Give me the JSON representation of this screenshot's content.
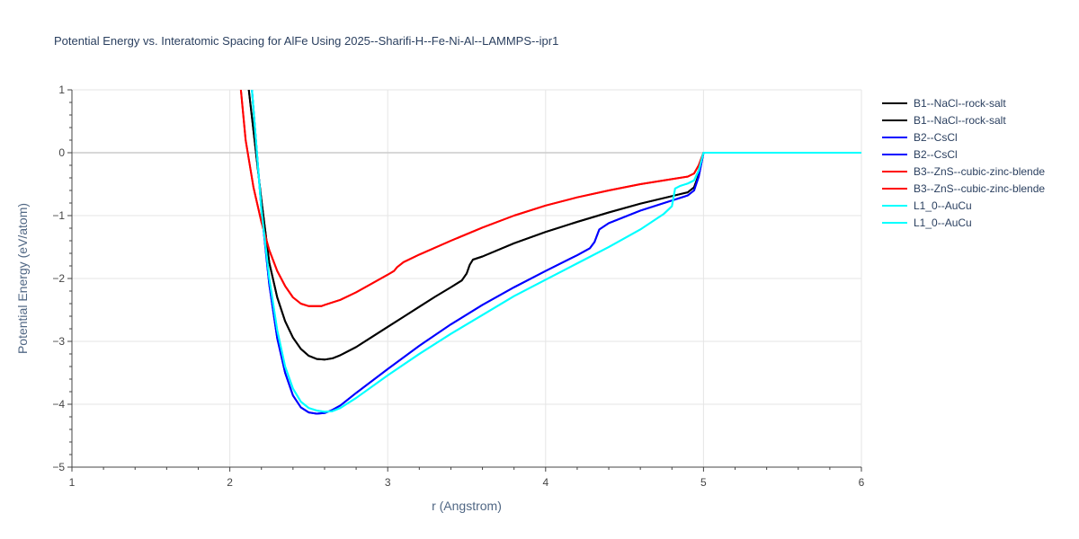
{
  "chart_data": {
    "type": "line",
    "title": "Potential Energy vs. Interatomic Spacing for AlFe Using 2025--Sharifi-H--Fe-Ni-Al--LAMMPS--ipr1",
    "xlabel": "r (Angstrom)",
    "ylabel": "Potential Energy (eV/atom)",
    "xlim": [
      1,
      6
    ],
    "ylim": [
      -5,
      1
    ],
    "xticks": [
      1,
      2,
      3,
      4,
      5,
      6
    ],
    "xtick_labels": [
      "1",
      "2",
      "3",
      "4",
      "5",
      "6"
    ],
    "yticks": [
      1,
      0,
      -1,
      -2,
      -3,
      -4,
      -5
    ],
    "ytick_labels": [
      "1",
      "0",
      "−1",
      "−2",
      "−3",
      "−4",
      "−5"
    ],
    "grid": true,
    "legend_position": "right",
    "series": [
      {
        "name": "B1--NaCl--rock-salt",
        "color": "#000000",
        "x": [
          2.12,
          2.2,
          2.25,
          2.3,
          2.35,
          2.4,
          2.45,
          2.5,
          2.55,
          2.6,
          2.65,
          2.7,
          2.8,
          2.9,
          3.0,
          3.1,
          3.2,
          3.3,
          3.4,
          3.47,
          3.5,
          3.52,
          3.54,
          3.6,
          3.8,
          4.0,
          4.2,
          4.4,
          4.6,
          4.8,
          4.9,
          4.94,
          4.97,
          5.0,
          5.5,
          6.0
        ],
        "y": [
          1.0,
          -0.75,
          -1.75,
          -2.3,
          -2.68,
          -2.94,
          -3.12,
          -3.23,
          -3.28,
          -3.29,
          -3.27,
          -3.22,
          -3.09,
          -2.93,
          -2.77,
          -2.61,
          -2.45,
          -2.29,
          -2.14,
          -2.03,
          -1.92,
          -1.78,
          -1.7,
          -1.65,
          -1.44,
          -1.26,
          -1.1,
          -0.95,
          -0.81,
          -0.69,
          -0.63,
          -0.55,
          -0.35,
          0.0,
          0.0,
          0.0
        ]
      },
      {
        "name": "B1--NaCl--rock-salt",
        "color": "#000000",
        "x": [
          2.12,
          2.2,
          2.25,
          2.3,
          2.35,
          2.4,
          2.45,
          2.5,
          2.55,
          2.6,
          2.65,
          2.7,
          2.8,
          2.9,
          3.0,
          3.1,
          3.2,
          3.3,
          3.4,
          3.47,
          3.5,
          3.52,
          3.54,
          3.6,
          3.8,
          4.0,
          4.2,
          4.4,
          4.6,
          4.8,
          4.9,
          4.94,
          4.97,
          5.0,
          5.5,
          6.0
        ],
        "y": [
          1.0,
          -0.75,
          -1.75,
          -2.3,
          -2.68,
          -2.94,
          -3.12,
          -3.23,
          -3.28,
          -3.29,
          -3.27,
          -3.22,
          -3.09,
          -2.93,
          -2.77,
          -2.61,
          -2.45,
          -2.29,
          -2.14,
          -2.03,
          -1.92,
          -1.78,
          -1.7,
          -1.65,
          -1.44,
          -1.26,
          -1.1,
          -0.95,
          -0.81,
          -0.69,
          -0.63,
          -0.55,
          -0.35,
          0.0,
          0.0,
          0.0
        ]
      },
      {
        "name": "B2--CsCl",
        "color": "#0000ff",
        "x": [
          2.14,
          2.2,
          2.25,
          2.3,
          2.35,
          2.4,
          2.45,
          2.5,
          2.55,
          2.6,
          2.65,
          2.7,
          2.8,
          3.0,
          3.2,
          3.4,
          3.6,
          3.8,
          4.0,
          4.2,
          4.28,
          4.31,
          4.34,
          4.4,
          4.6,
          4.8,
          4.9,
          4.94,
          4.97,
          5.0,
          5.5,
          6.0
        ],
        "y": [
          1.0,
          -0.9,
          -2.1,
          -2.95,
          -3.5,
          -3.86,
          -4.05,
          -4.13,
          -4.15,
          -4.14,
          -4.09,
          -4.02,
          -3.82,
          -3.44,
          -3.07,
          -2.73,
          -2.42,
          -2.14,
          -1.88,
          -1.63,
          -1.52,
          -1.42,
          -1.22,
          -1.12,
          -0.92,
          -0.76,
          -0.68,
          -0.6,
          -0.38,
          0.0,
          0.0,
          0.0
        ]
      },
      {
        "name": "B2--CsCl",
        "color": "#0000ff",
        "x": [
          2.14,
          2.2,
          2.25,
          2.3,
          2.35,
          2.4,
          2.45,
          2.5,
          2.55,
          2.6,
          2.65,
          2.7,
          2.8,
          3.0,
          3.2,
          3.4,
          3.6,
          3.8,
          4.0,
          4.2,
          4.28,
          4.31,
          4.34,
          4.4,
          4.6,
          4.8,
          4.9,
          4.94,
          4.97,
          5.0,
          5.5,
          6.0
        ],
        "y": [
          1.0,
          -0.9,
          -2.1,
          -2.95,
          -3.5,
          -3.86,
          -4.05,
          -4.13,
          -4.15,
          -4.14,
          -4.09,
          -4.02,
          -3.82,
          -3.44,
          -3.07,
          -2.73,
          -2.42,
          -2.14,
          -1.88,
          -1.63,
          -1.52,
          -1.42,
          -1.22,
          -1.12,
          -0.92,
          -0.76,
          -0.68,
          -0.6,
          -0.38,
          0.0,
          0.0,
          0.0
        ]
      },
      {
        "name": "B3--ZnS--cubic-zinc-blende",
        "color": "#ff0000",
        "x": [
          2.07,
          2.1,
          2.15,
          2.2,
          2.25,
          2.3,
          2.35,
          2.4,
          2.45,
          2.5,
          2.55,
          2.58,
          2.6,
          2.7,
          2.8,
          2.9,
          3.0,
          3.04,
          3.06,
          3.1,
          3.2,
          3.4,
          3.6,
          3.8,
          4.0,
          4.2,
          4.4,
          4.6,
          4.8,
          4.9,
          4.94,
          4.97,
          5.0,
          5.5,
          6.0
        ],
        "y": [
          1.0,
          0.2,
          -0.55,
          -1.1,
          -1.55,
          -1.88,
          -2.12,
          -2.3,
          -2.4,
          -2.44,
          -2.44,
          -2.44,
          -2.42,
          -2.34,
          -2.22,
          -2.08,
          -1.94,
          -1.88,
          -1.82,
          -1.74,
          -1.62,
          -1.4,
          -1.19,
          -1.0,
          -0.84,
          -0.71,
          -0.6,
          -0.5,
          -0.42,
          -0.38,
          -0.33,
          -0.2,
          0.0,
          0.0,
          0.0
        ]
      },
      {
        "name": "B3--ZnS--cubic-zinc-blende",
        "color": "#ff0000",
        "x": [
          2.07,
          2.1,
          2.15,
          2.2,
          2.25,
          2.3,
          2.35,
          2.4,
          2.45,
          2.5,
          2.55,
          2.58,
          2.6,
          2.7,
          2.8,
          2.9,
          3.0,
          3.04,
          3.06,
          3.1,
          3.2,
          3.4,
          3.6,
          3.8,
          4.0,
          4.2,
          4.4,
          4.6,
          4.8,
          4.9,
          4.94,
          4.97,
          5.0,
          5.5,
          6.0
        ],
        "y": [
          1.0,
          0.2,
          -0.55,
          -1.1,
          -1.55,
          -1.88,
          -2.12,
          -2.3,
          -2.4,
          -2.44,
          -2.44,
          -2.44,
          -2.42,
          -2.34,
          -2.22,
          -2.08,
          -1.94,
          -1.88,
          -1.82,
          -1.74,
          -1.62,
          -1.4,
          -1.19,
          -1.0,
          -0.84,
          -0.71,
          -0.6,
          -0.5,
          -0.42,
          -0.38,
          -0.33,
          -0.2,
          0.0,
          0.0,
          0.0
        ]
      },
      {
        "name": "L1_0--AuCu",
        "color": "#00ffff",
        "x": [
          2.14,
          2.2,
          2.25,
          2.3,
          2.35,
          2.4,
          2.45,
          2.5,
          2.55,
          2.6,
          2.65,
          2.7,
          2.8,
          3.0,
          3.2,
          3.4,
          3.6,
          3.8,
          4.0,
          4.2,
          4.4,
          4.6,
          4.75,
          4.8,
          4.82,
          4.85,
          4.9,
          4.94,
          4.97,
          5.0,
          5.5,
          6.0
        ],
        "y": [
          1.0,
          -0.9,
          -2.0,
          -2.82,
          -3.4,
          -3.75,
          -3.96,
          -4.06,
          -4.1,
          -4.12,
          -4.11,
          -4.06,
          -3.9,
          -3.54,
          -3.2,
          -2.88,
          -2.58,
          -2.28,
          -2.02,
          -1.76,
          -1.5,
          -1.22,
          -0.97,
          -0.85,
          -0.57,
          -0.53,
          -0.49,
          -0.44,
          -0.28,
          0.0,
          0.0,
          0.0
        ]
      },
      {
        "name": "L1_0--AuCu",
        "color": "#00ffff",
        "x": [
          2.14,
          2.2,
          2.25,
          2.3,
          2.35,
          2.4,
          2.45,
          2.5,
          2.55,
          2.6,
          2.65,
          2.7,
          2.8,
          3.0,
          3.2,
          3.4,
          3.6,
          3.8,
          4.0,
          4.2,
          4.4,
          4.6,
          4.75,
          4.8,
          4.82,
          4.85,
          4.9,
          4.94,
          4.97,
          5.0,
          5.5,
          6.0
        ],
        "y": [
          1.0,
          -0.9,
          -2.0,
          -2.82,
          -3.4,
          -3.75,
          -3.96,
          -4.06,
          -4.1,
          -4.12,
          -4.11,
          -4.06,
          -3.9,
          -3.54,
          -3.2,
          -2.88,
          -2.58,
          -2.28,
          -2.02,
          -1.76,
          -1.5,
          -1.22,
          -0.97,
          -0.85,
          -0.57,
          -0.53,
          -0.49,
          -0.44,
          -0.28,
          0.0,
          0.0,
          0.0
        ]
      }
    ]
  }
}
